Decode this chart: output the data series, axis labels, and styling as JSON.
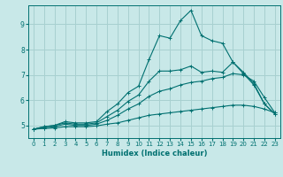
{
  "xlabel": "Humidex (Indice chaleur)",
  "bg_color": "#c8e8e8",
  "line_color": "#007070",
  "grid_color": "#a8d0d0",
  "xlim": [
    -0.5,
    23.5
  ],
  "ylim": [
    4.5,
    9.75
  ],
  "xticks": [
    0,
    1,
    2,
    3,
    4,
    5,
    6,
    7,
    8,
    9,
    10,
    11,
    12,
    13,
    14,
    15,
    16,
    17,
    18,
    19,
    20,
    21,
    22,
    23
  ],
  "yticks": [
    5,
    6,
    7,
    8,
    9
  ],
  "series": [
    [
      4.85,
      4.95,
      5.0,
      5.15,
      5.1,
      5.1,
      5.15,
      5.55,
      5.85,
      6.3,
      6.55,
      7.6,
      8.55,
      8.45,
      9.15,
      9.55,
      8.55,
      8.35,
      8.25,
      7.5,
      7.1,
      6.65,
      5.85,
      5.45
    ],
    [
      4.85,
      4.95,
      5.0,
      5.1,
      5.05,
      5.05,
      5.1,
      5.35,
      5.6,
      5.95,
      6.2,
      6.75,
      7.15,
      7.15,
      7.2,
      7.35,
      7.1,
      7.15,
      7.1,
      7.5,
      7.05,
      6.6,
      5.85,
      5.45
    ],
    [
      4.85,
      4.9,
      4.95,
      5.05,
      5.0,
      5.0,
      5.05,
      5.2,
      5.4,
      5.65,
      5.85,
      6.15,
      6.35,
      6.45,
      6.6,
      6.7,
      6.75,
      6.85,
      6.9,
      7.05,
      7.0,
      6.75,
      6.1,
      5.5
    ],
    [
      4.85,
      4.88,
      4.9,
      4.95,
      4.95,
      4.95,
      4.98,
      5.05,
      5.1,
      5.2,
      5.3,
      5.4,
      5.45,
      5.5,
      5.55,
      5.6,
      5.65,
      5.7,
      5.75,
      5.8,
      5.8,
      5.75,
      5.65,
      5.5
    ]
  ]
}
